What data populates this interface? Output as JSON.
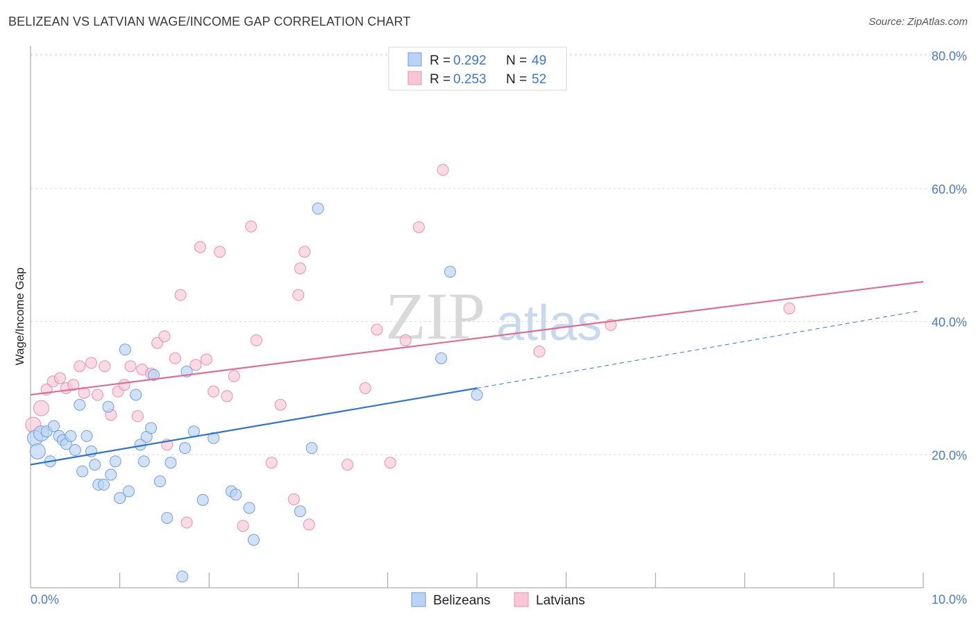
{
  "header": {
    "title": "BELIZEAN VS LATVIAN WAGE/INCOME GAP CORRELATION CHART",
    "source": "Source: ZipAtlas.com"
  },
  "legend_top": {
    "rows": [
      {
        "r_label": "R =",
        "r_value": "0.292",
        "n_label": "N =",
        "n_value": "49"
      },
      {
        "r_label": "R =",
        "r_value": "0.253",
        "n_label": "N =",
        "n_value": "52"
      }
    ]
  },
  "legend_bottom": {
    "items": [
      {
        "label": "Belizeans"
      },
      {
        "label": "Latvians"
      }
    ]
  },
  "watermark": {
    "zip": "ZIP",
    "atlas": "atlas"
  },
  "colors": {
    "belizeans_fill": "#b8d3f5",
    "belizeans_stroke": "#6f9fd8",
    "belizeans_line": "#2f72cf",
    "latvians_fill": "#f8c6d6",
    "latvians_stroke": "#e690ad",
    "latvians_line": "#e06b96",
    "grid": "#d8d8d8",
    "tick_label": "#4a7cc4"
  },
  "chart_data": {
    "type": "scatter",
    "title": "BELIZEAN VS LATVIAN WAGE/INCOME GAP CORRELATION CHART",
    "xlabel": "",
    "ylabel": "Wage/Income Gap",
    "xlim": [
      0,
      10
    ],
    "ylim": [
      0,
      80
    ],
    "x_tick_labels": [
      "0.0%",
      "10.0%"
    ],
    "y_ticks": [
      20,
      40,
      60,
      80
    ],
    "y_tick_labels": [
      "20.0%",
      "40.0%",
      "60.0%",
      "80.0%"
    ],
    "grid": true,
    "legend_position": "top-center",
    "series": [
      {
        "name": "Belizeans",
        "r": 0.292,
        "n": 49,
        "trend": {
          "x0": 0,
          "y0": 18.5,
          "x1": 5.0,
          "y1": 30.0,
          "dashed_to_x": 9.95,
          "dashed_to_y": 41.6
        },
        "points": [
          [
            0.05,
            22.5
          ],
          [
            0.08,
            20.5
          ],
          [
            0.12,
            23.2
          ],
          [
            0.18,
            23.5
          ],
          [
            0.22,
            19.0
          ],
          [
            0.26,
            24.3
          ],
          [
            0.32,
            22.8
          ],
          [
            0.36,
            22.2
          ],
          [
            0.4,
            21.6
          ],
          [
            0.45,
            22.8
          ],
          [
            0.5,
            20.7
          ],
          [
            0.55,
            27.5
          ],
          [
            0.58,
            17.5
          ],
          [
            0.63,
            22.8
          ],
          [
            0.68,
            20.5
          ],
          [
            0.72,
            18.5
          ],
          [
            0.76,
            15.5
          ],
          [
            0.82,
            15.5
          ],
          [
            0.87,
            27.2
          ],
          [
            0.9,
            17.0
          ],
          [
            0.95,
            19.0
          ],
          [
            1.0,
            13.5
          ],
          [
            1.06,
            35.8
          ],
          [
            1.1,
            14.5
          ],
          [
            1.18,
            29.0
          ],
          [
            1.23,
            21.5
          ],
          [
            1.27,
            19.0
          ],
          [
            1.3,
            22.7
          ],
          [
            1.35,
            24.0
          ],
          [
            1.38,
            32.0
          ],
          [
            1.45,
            16.0
          ],
          [
            1.53,
            10.5
          ],
          [
            1.57,
            18.8
          ],
          [
            1.7,
            1.7
          ],
          [
            1.73,
            21.0
          ],
          [
            1.75,
            32.5
          ],
          [
            1.83,
            23.5
          ],
          [
            1.93,
            13.2
          ],
          [
            2.05,
            22.5
          ],
          [
            2.25,
            14.5
          ],
          [
            2.3,
            14.0
          ],
          [
            2.45,
            12.0
          ],
          [
            2.5,
            7.2
          ],
          [
            3.02,
            11.5
          ],
          [
            3.15,
            21.0
          ],
          [
            3.22,
            57.0
          ],
          [
            4.6,
            34.5
          ],
          [
            4.7,
            47.5
          ],
          [
            5.0,
            29.0
          ]
        ]
      },
      {
        "name": "Latvians",
        "r": 0.253,
        "n": 52,
        "trend": {
          "x0": 0,
          "y0": 29.0,
          "x1": 10.0,
          "y1": 46.0
        },
        "points": [
          [
            0.03,
            24.5
          ],
          [
            0.12,
            27.0
          ],
          [
            0.18,
            29.8
          ],
          [
            0.25,
            31.0
          ],
          [
            0.33,
            31.5
          ],
          [
            0.4,
            30.0
          ],
          [
            0.48,
            30.5
          ],
          [
            0.55,
            33.3
          ],
          [
            0.6,
            29.3
          ],
          [
            0.68,
            33.8
          ],
          [
            0.75,
            29.0
          ],
          [
            0.83,
            33.3
          ],
          [
            0.9,
            26.0
          ],
          [
            0.98,
            29.5
          ],
          [
            1.05,
            30.5
          ],
          [
            1.12,
            33.3
          ],
          [
            1.2,
            25.8
          ],
          [
            1.25,
            32.8
          ],
          [
            1.35,
            32.2
          ],
          [
            1.42,
            36.8
          ],
          [
            1.5,
            37.8
          ],
          [
            1.53,
            21.5
          ],
          [
            1.62,
            34.5
          ],
          [
            1.68,
            44.0
          ],
          [
            1.75,
            9.8
          ],
          [
            1.85,
            33.5
          ],
          [
            1.9,
            51.2
          ],
          [
            1.97,
            34.3
          ],
          [
            2.05,
            29.5
          ],
          [
            2.12,
            50.5
          ],
          [
            2.2,
            28.8
          ],
          [
            2.28,
            31.8
          ],
          [
            2.38,
            9.3
          ],
          [
            2.47,
            54.3
          ],
          [
            2.53,
            37.2
          ],
          [
            2.7,
            18.8
          ],
          [
            2.8,
            27.5
          ],
          [
            2.95,
            13.3
          ],
          [
            3.0,
            44.0
          ],
          [
            3.02,
            48.0
          ],
          [
            3.07,
            50.5
          ],
          [
            3.12,
            9.5
          ],
          [
            3.55,
            18.5
          ],
          [
            3.75,
            30.0
          ],
          [
            3.88,
            38.8
          ],
          [
            4.03,
            18.8
          ],
          [
            4.2,
            37.2
          ],
          [
            4.35,
            54.2
          ],
          [
            4.62,
            62.8
          ],
          [
            5.7,
            35.5
          ],
          [
            6.5,
            39.5
          ],
          [
            8.5,
            42.0
          ]
        ]
      }
    ]
  }
}
